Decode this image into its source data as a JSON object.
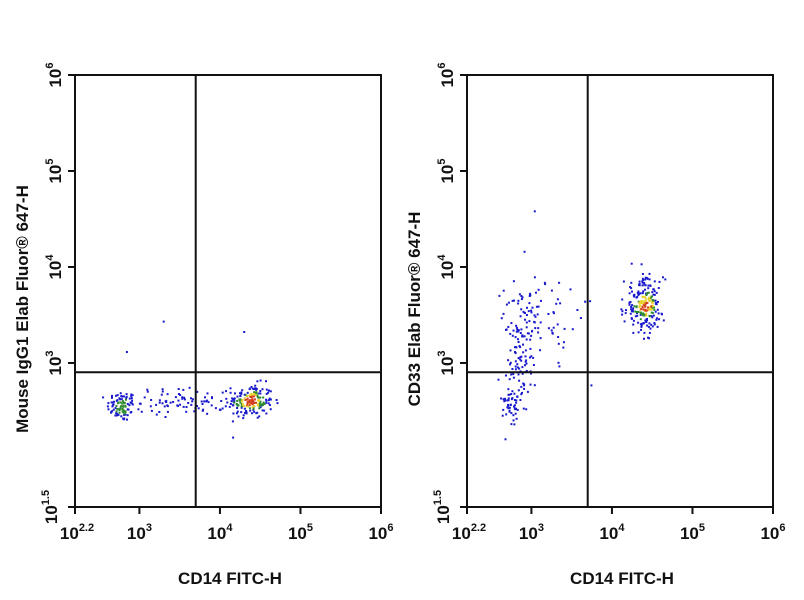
{
  "chart_data": [
    {
      "type": "scatter",
      "panel": "isotype-control",
      "xlabel": "CD14 FITC-H",
      "ylabel": "Mouse IgG1 Elab Fluor® 647-H",
      "x_scale": "log",
      "y_scale": "log",
      "xlim": [
        158.5,
        1000000
      ],
      "ylim": [
        31.6,
        1000000
      ],
      "x_ticks": [
        {
          "base": "10",
          "exp": "2.2",
          "value": 158.5
        },
        {
          "base": "10",
          "exp": "3",
          "value": 1000
        },
        {
          "base": "10",
          "exp": "4",
          "value": 10000
        },
        {
          "base": "10",
          "exp": "5",
          "value": 100000
        },
        {
          "base": "10",
          "exp": "6",
          "value": 1000000
        }
      ],
      "y_ticks": [
        {
          "base": "10",
          "exp": "1.5",
          "value": 31.6
        },
        {
          "base": "10",
          "exp": "3",
          "value": 1000
        },
        {
          "base": "10",
          "exp": "4",
          "value": 10000
        },
        {
          "base": "10",
          "exp": "5",
          "value": 100000
        },
        {
          "base": "10",
          "exp": "6",
          "value": 1000000
        }
      ],
      "gates": {
        "x": 5000,
        "y": 800
      },
      "populations": [
        {
          "name": "",
          "center_log10": [
            2.78,
            2.55
          ],
          "spread_log10": [
            0.09,
            0.08
          ],
          "count": 90
        },
        {
          "name": "",
          "center_log10": [
            4.38,
            2.6
          ],
          "spread_log10": [
            0.14,
            0.09
          ],
          "count": 190
        },
        {
          "name": "",
          "center_log10": [
            3.55,
            2.6
          ],
          "spread_log10": [
            0.3,
            0.07
          ],
          "count": 80
        }
      ],
      "outliers": [
        [
          2000,
          2700
        ],
        [
          20000,
          2100
        ],
        [
          700,
          1300
        ]
      ]
    },
    {
      "type": "scatter",
      "panel": "cd33-stained",
      "xlabel": "CD14 FITC-H",
      "ylabel": "CD33 Elab Fluor® 647-H",
      "x_scale": "log",
      "y_scale": "log",
      "xlim": [
        158.5,
        1000000
      ],
      "ylim": [
        31.6,
        1000000
      ],
      "x_ticks": [
        {
          "base": "10",
          "exp": "2.2",
          "value": 158.5
        },
        {
          "base": "10",
          "exp": "3",
          "value": 1000
        },
        {
          "base": "10",
          "exp": "4",
          "value": 10000
        },
        {
          "base": "10",
          "exp": "5",
          "value": 100000
        },
        {
          "base": "10",
          "exp": "6",
          "value": 1000000
        }
      ],
      "y_ticks": [
        {
          "base": "10",
          "exp": "1.5",
          "value": 31.6
        },
        {
          "base": "10",
          "exp": "3",
          "value": 1000
        },
        {
          "base": "10",
          "exp": "4",
          "value": 10000
        },
        {
          "base": "10",
          "exp": "5",
          "value": 100000
        },
        {
          "base": "10",
          "exp": "6",
          "value": 1000000
        }
      ],
      "gates": {
        "x": 5000,
        "y": 800
      },
      "populations": [
        {
          "name": "",
          "center_log10": [
            4.4,
            3.6
          ],
          "spread_log10": [
            0.12,
            0.14
          ],
          "count": 230
        },
        {
          "name": "",
          "center_log10": [
            2.85,
            3.1
          ],
          "spread_log10": [
            0.1,
            0.3
          ],
          "count": 110
        },
        {
          "name": "",
          "center_log10": [
            3.15,
            3.5
          ],
          "spread_log10": [
            0.22,
            0.22
          ],
          "count": 70
        },
        {
          "name": "",
          "center_log10": [
            2.75,
            2.55
          ],
          "spread_log10": [
            0.06,
            0.12
          ],
          "count": 45
        }
      ],
      "outliers": [
        [
          1100,
          38000
        ],
        [
          400,
          5000
        ]
      ]
    }
  ],
  "colors": {
    "axis": "#111111",
    "density_low": "#1a1acd",
    "density_mid": "#2f8a2f",
    "density_high": "#e8d12a",
    "density_peak": "#d4401e"
  }
}
